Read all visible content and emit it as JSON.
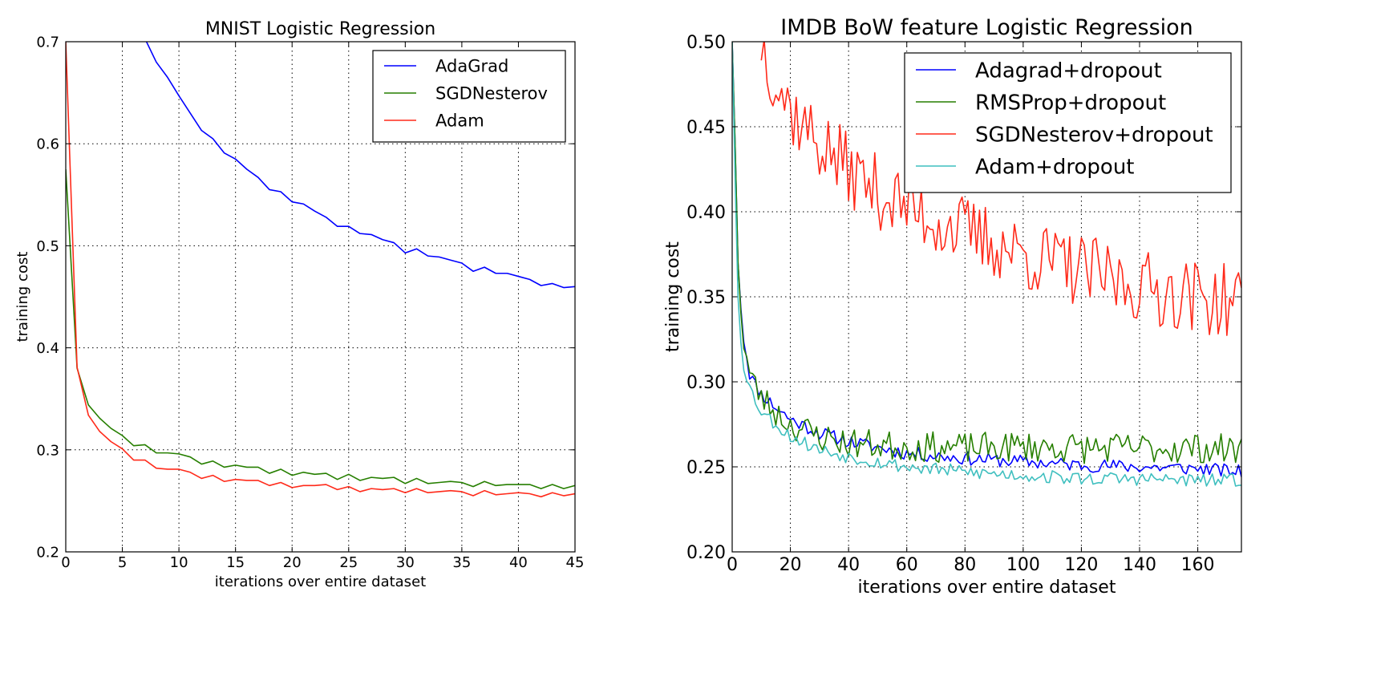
{
  "chart_data": [
    {
      "type": "line",
      "title": "MNIST Logistic Regression",
      "xlabel": "iterations over entire dataset",
      "ylabel": "training cost",
      "xlim": [
        0,
        45
      ],
      "ylim": [
        0.2,
        0.7
      ],
      "xticks": [
        0,
        5,
        10,
        15,
        20,
        25,
        30,
        35,
        40,
        45
      ],
      "xtick_labels": [
        "0",
        "5",
        "10",
        "15",
        "20",
        "25",
        "30",
        "35",
        "40",
        "45"
      ],
      "yticks": [
        0.2,
        0.3,
        0.4,
        0.5,
        0.6,
        0.7
      ],
      "ytick_labels": [
        "0.2",
        "0.3",
        "0.4",
        "0.5",
        "0.6",
        "0.7"
      ],
      "grid": true,
      "legend_position": "top-right",
      "series": [
        {
          "name": "AdaGrad",
          "color": "#0000ff",
          "x": [
            7,
            8,
            9,
            10,
            11,
            12,
            13,
            14,
            15,
            16,
            17,
            18,
            19,
            20,
            21,
            22,
            23,
            24,
            25,
            26,
            27,
            28,
            29,
            30,
            31,
            32,
            33,
            34,
            35,
            36,
            37,
            38,
            39,
            40,
            41,
            42,
            43,
            44,
            45
          ],
          "y": [
            0.703,
            0.68,
            0.665,
            0.647,
            0.63,
            0.613,
            0.605,
            0.591,
            0.585,
            0.575,
            0.567,
            0.555,
            0.553,
            0.543,
            0.541,
            0.534,
            0.528,
            0.519,
            0.519,
            0.512,
            0.511,
            0.506,
            0.503,
            0.493,
            0.497,
            0.49,
            0.489,
            0.486,
            0.483,
            0.475,
            0.479,
            0.473,
            0.473,
            0.47,
            0.467,
            0.461,
            0.463,
            0.459,
            0.46
          ]
        },
        {
          "name": "SGDNesterov",
          "color": "#267f00",
          "x": [
            0,
            1,
            2,
            3,
            4,
            5,
            6,
            7,
            8,
            9,
            10,
            11,
            12,
            13,
            14,
            15,
            16,
            17,
            18,
            19,
            20,
            21,
            22,
            23,
            24,
            25,
            26,
            27,
            28,
            29,
            30,
            31,
            32,
            33,
            34,
            35,
            36,
            37,
            38,
            39,
            40,
            41,
            42,
            43,
            44,
            45
          ],
          "y": [
            0.575,
            0.38,
            0.344,
            0.331,
            0.321,
            0.314,
            0.304,
            0.305,
            0.297,
            0.297,
            0.296,
            0.293,
            0.286,
            0.289,
            0.283,
            0.285,
            0.283,
            0.283,
            0.277,
            0.281,
            0.275,
            0.278,
            0.276,
            0.277,
            0.271,
            0.276,
            0.27,
            0.273,
            0.272,
            0.273,
            0.267,
            0.272,
            0.267,
            0.268,
            0.269,
            0.268,
            0.264,
            0.269,
            0.265,
            0.266,
            0.266,
            0.266,
            0.262,
            0.266,
            0.262,
            0.265
          ]
        },
        {
          "name": "Adam",
          "color": "#ff2a1a",
          "x": [
            0,
            1,
            2,
            3,
            4,
            5,
            6,
            7,
            8,
            9,
            10,
            11,
            12,
            13,
            14,
            15,
            16,
            17,
            18,
            19,
            20,
            21,
            22,
            23,
            24,
            25,
            26,
            27,
            28,
            29,
            30,
            31,
            32,
            33,
            34,
            35,
            36,
            37,
            38,
            39,
            40,
            41,
            42,
            43,
            44,
            45
          ],
          "y": [
            0.7,
            0.381,
            0.334,
            0.318,
            0.308,
            0.301,
            0.29,
            0.29,
            0.282,
            0.281,
            0.281,
            0.278,
            0.272,
            0.275,
            0.269,
            0.271,
            0.27,
            0.27,
            0.265,
            0.268,
            0.263,
            0.265,
            0.265,
            0.266,
            0.261,
            0.264,
            0.259,
            0.262,
            0.261,
            0.262,
            0.258,
            0.262,
            0.258,
            0.259,
            0.26,
            0.259,
            0.255,
            0.26,
            0.256,
            0.257,
            0.258,
            0.257,
            0.254,
            0.258,
            0.255,
            0.257
          ]
        }
      ]
    },
    {
      "type": "line",
      "title": "IMDB BoW feature Logistic Regression",
      "xlabel": "iterations over entire dataset",
      "ylabel": "training cost",
      "xlim": [
        0,
        175
      ],
      "ylim": [
        0.2,
        0.5
      ],
      "xticks": [
        0,
        20,
        40,
        60,
        80,
        100,
        120,
        140,
        160
      ],
      "xtick_labels": [
        "0",
        "20",
        "40",
        "60",
        "80",
        "100",
        "120",
        "140",
        "160"
      ],
      "yticks": [
        0.2,
        0.25,
        0.3,
        0.35,
        0.4,
        0.45,
        0.5
      ],
      "ytick_labels": [
        "0.20",
        "0.25",
        "0.30",
        "0.35",
        "0.40",
        "0.45",
        "0.50"
      ],
      "grid": true,
      "legend_position": "top-right",
      "series": [
        {
          "name": "Adagrad+dropout",
          "color": "#0000ff",
          "trend": {
            "x": [
              0,
              1,
              2,
              3,
              4,
              6,
              8,
              10,
              15,
              20,
              30,
              40,
              60,
              80,
              100,
              120,
              140,
              160,
              175
            ],
            "y": [
              0.5,
              0.44,
              0.37,
              0.345,
              0.325,
              0.305,
              0.298,
              0.293,
              0.285,
              0.278,
              0.27,
              0.265,
              0.258,
              0.255,
              0.253,
              0.251,
              0.25,
              0.249,
              0.247
            ]
          },
          "noise_amplitude": 0.004,
          "seed": 11
        },
        {
          "name": "RMSProp+dropout",
          "color": "#267f00",
          "trend": {
            "x": [
              0,
              1,
              2,
              3,
              4,
              6,
              8,
              10,
              15,
              20,
              30,
              40,
              60,
              80,
              100,
              120,
              140,
              160,
              175
            ],
            "y": [
              0.5,
              0.44,
              0.37,
              0.345,
              0.322,
              0.305,
              0.297,
              0.291,
              0.282,
              0.275,
              0.268,
              0.264,
              0.262,
              0.261,
              0.262,
              0.261,
              0.261,
              0.261,
              0.26
            ]
          },
          "noise_amplitude": 0.009,
          "seed": 23
        },
        {
          "name": "SGDNesterov+dropout",
          "color": "#ff2a1a",
          "trend": {
            "x": [
              10,
              15,
              20,
              30,
              40,
              50,
              60,
              70,
              80,
              100,
              120,
              140,
              160,
              175
            ],
            "y": [
              0.5,
              0.478,
              0.46,
              0.44,
              0.425,
              0.412,
              0.403,
              0.395,
              0.388,
              0.375,
              0.365,
              0.356,
              0.35,
              0.346
            ]
          },
          "noise_amplitude": 0.022,
          "seed": 37
        },
        {
          "name": "Adam+dropout",
          "color": "#3fbfbf",
          "trend": {
            "x": [
              0,
              1,
              2,
              3,
              4,
              6,
              8,
              10,
              15,
              20,
              30,
              40,
              60,
              80,
              100,
              120,
              140,
              160,
              175
            ],
            "y": [
              0.5,
              0.42,
              0.35,
              0.325,
              0.31,
              0.297,
              0.289,
              0.283,
              0.275,
              0.268,
              0.26,
              0.256,
              0.25,
              0.247,
              0.245,
              0.243,
              0.243,
              0.242,
              0.242
            ]
          },
          "noise_amplitude": 0.004,
          "seed": 53
        }
      ]
    }
  ]
}
